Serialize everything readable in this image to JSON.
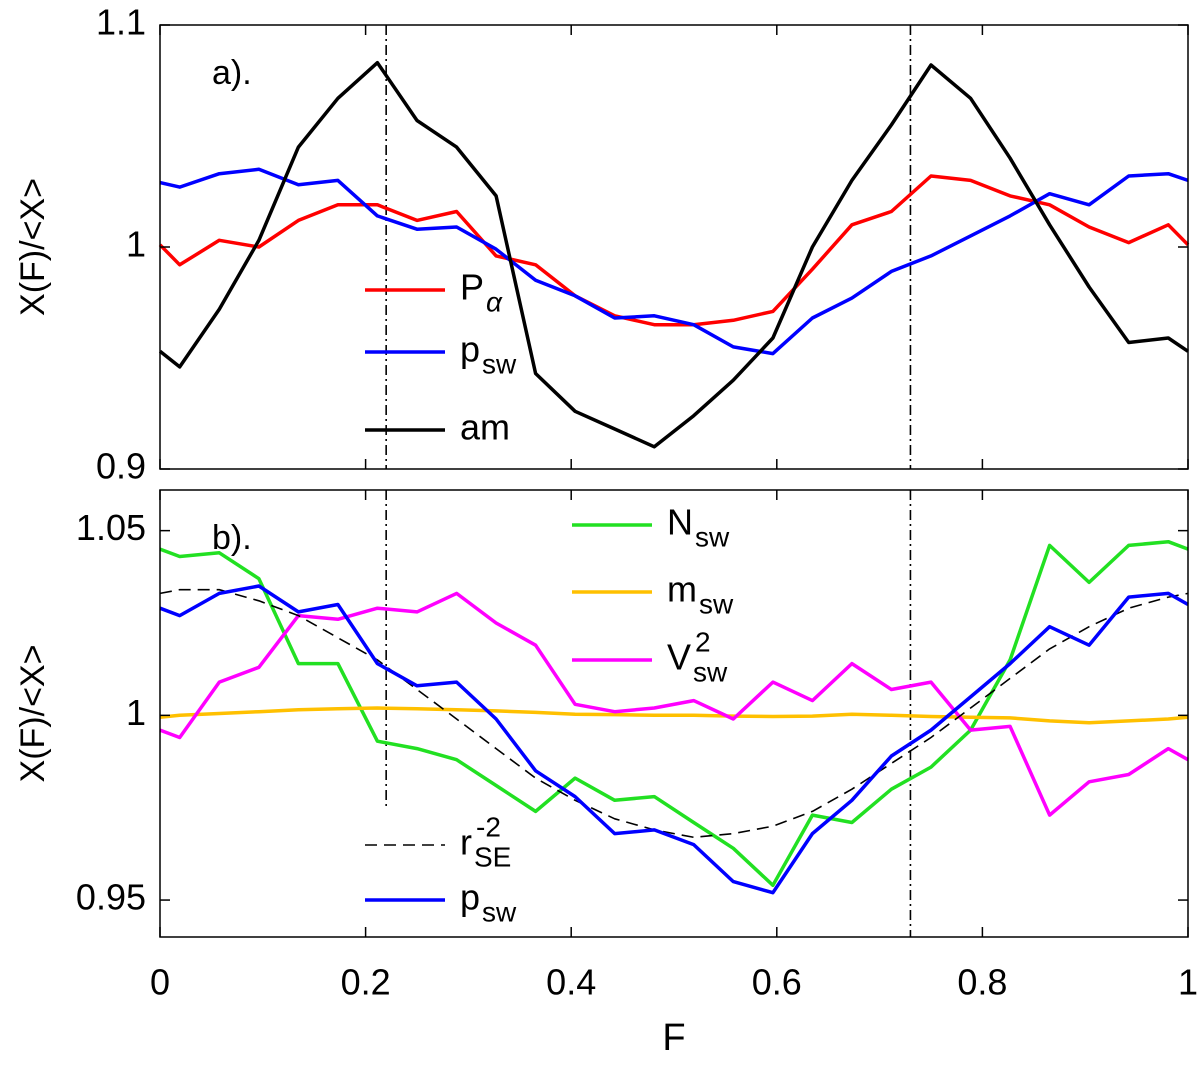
{
  "chart_data": [
    {
      "type": "line",
      "panel_label": "a).",
      "ylabel": "X(F)/<X>",
      "xlim": [
        0,
        1
      ],
      "xticks": [
        0,
        0.2,
        0.4,
        0.6,
        0.8,
        1
      ],
      "show_xtick_labels": false,
      "ylim": [
        0.9,
        1.1
      ],
      "yticks": [
        0.9,
        1,
        1.1
      ],
      "vlines": [
        0.22,
        0.73
      ],
      "x": [
        0,
        0.0192,
        0.0577,
        0.0962,
        0.1346,
        0.1731,
        0.2115,
        0.25,
        0.2885,
        0.3269,
        0.3654,
        0.4038,
        0.4423,
        0.4808,
        0.5192,
        0.5577,
        0.5962,
        0.6346,
        0.6731,
        0.7115,
        0.75,
        0.7885,
        0.8269,
        0.8654,
        0.9038,
        0.9423,
        0.9808,
        1
      ],
      "series": [
        {
          "name": "P",
          "sub": "α",
          "color": "#ff0000",
          "values": [
            1.001,
            0.992,
            1.003,
            1.0,
            1.012,
            1.019,
            1.019,
            1.012,
            1.016,
            0.996,
            0.992,
            0.978,
            0.969,
            0.965,
            0.965,
            0.967,
            0.971,
            0.99,
            1.01,
            1.016,
            1.032,
            1.03,
            1.023,
            1.019,
            1.009,
            1.002,
            1.01,
            1.001
          ]
        },
        {
          "name": "p",
          "sub": "sw",
          "color": "#0000ff",
          "values": [
            1.029,
            1.027,
            1.033,
            1.035,
            1.028,
            1.03,
            1.014,
            1.008,
            1.009,
            0.999,
            0.985,
            0.978,
            0.968,
            0.969,
            0.965,
            0.955,
            0.952,
            0.968,
            0.977,
            0.989,
            0.996,
            1.005,
            1.014,
            1.024,
            1.019,
            1.032,
            1.033,
            1.03
          ]
        },
        {
          "name": "am",
          "color": "#000000",
          "values": [
            0.953,
            0.946,
            0.972,
            1.003,
            1.045,
            1.067,
            1.083,
            1.057,
            1.045,
            1.023,
            0.943,
            0.926,
            0.918,
            0.91,
            0.924,
            0.94,
            0.959,
            1.0,
            1.03,
            1.055,
            1.082,
            1.067,
            1.04,
            1.01,
            0.982,
            0.957,
            0.959,
            0.953
          ]
        }
      ]
    },
    {
      "type": "line",
      "panel_label": "b).",
      "ylabel": "X(F)/<X>",
      "xlabel": "F",
      "xlim": [
        0,
        1
      ],
      "xticks": [
        0,
        0.2,
        0.4,
        0.6,
        0.8,
        1
      ],
      "show_xtick_labels": true,
      "ylim": [
        0.94,
        1.061
      ],
      "yticks": [
        0.95,
        1,
        1.05
      ],
      "vlines": [
        0.22,
        0.73
      ],
      "x": [
        0,
        0.0192,
        0.0577,
        0.0962,
        0.1346,
        0.1731,
        0.2115,
        0.25,
        0.2885,
        0.3269,
        0.3654,
        0.4038,
        0.4423,
        0.4808,
        0.5192,
        0.5577,
        0.5962,
        0.6346,
        0.6731,
        0.7115,
        0.75,
        0.7885,
        0.8269,
        0.8654,
        0.9038,
        0.9423,
        0.9808,
        1
      ],
      "series": [
        {
          "name": "N",
          "sub": "sw",
          "color": "#22e022",
          "values": [
            1.045,
            1.043,
            1.044,
            1.037,
            1.014,
            1.014,
            0.993,
            0.991,
            0.988,
            0.981,
            0.974,
            0.983,
            0.977,
            0.978,
            0.971,
            0.964,
            0.954,
            0.973,
            0.971,
            0.98,
            0.986,
            0.996,
            1.015,
            1.046,
            1.036,
            1.046,
            1.047,
            1.045
          ]
        },
        {
          "name": "m",
          "sub": "sw",
          "color": "#ffc000",
          "values": [
            0.9995,
            1.0,
            1.0005,
            1.001,
            1.0015,
            1.0018,
            1.002,
            1.0018,
            1.0015,
            1.0012,
            1.0008,
            1.0003,
            1.0002,
            1.0,
            1.0,
            0.9998,
            0.9997,
            0.9998,
            1.0003,
            1.0,
            0.9997,
            0.9995,
            0.9993,
            0.9985,
            0.998,
            0.9985,
            0.999,
            0.9995
          ]
        },
        {
          "name": "V",
          "sub": "sw",
          "sup": "2",
          "color": "#ff00ff",
          "values": [
            0.996,
            0.994,
            1.009,
            1.013,
            1.027,
            1.026,
            1.029,
            1.028,
            1.033,
            1.025,
            1.019,
            1.003,
            1.001,
            1.002,
            1.004,
            0.999,
            1.009,
            1.004,
            1.014,
            1.007,
            1.009,
            0.996,
            0.997,
            0.973,
            0.982,
            0.984,
            0.991,
            0.988
          ]
        },
        {
          "name": "r",
          "sub": "SE",
          "sup": "-2",
          "color": "#000000",
          "dashed": true,
          "values": [
            1.033,
            1.034,
            1.034,
            1.031,
            1.027,
            1.021,
            1.015,
            1.007,
            0.999,
            0.991,
            0.983,
            0.977,
            0.972,
            0.969,
            0.967,
            0.968,
            0.97,
            0.974,
            0.98,
            0.987,
            0.994,
            1.002,
            1.01,
            1.018,
            1.024,
            1.029,
            1.032,
            1.033
          ]
        },
        {
          "name": "p",
          "sub": "sw",
          "color": "#0000ff",
          "values": [
            1.029,
            1.027,
            1.033,
            1.035,
            1.028,
            1.03,
            1.014,
            1.008,
            1.009,
            0.999,
            0.985,
            0.978,
            0.968,
            0.969,
            0.965,
            0.955,
            0.952,
            0.968,
            0.977,
            0.989,
            0.996,
            1.005,
            1.014,
            1.024,
            1.019,
            1.032,
            1.033,
            1.03
          ]
        }
      ]
    }
  ]
}
